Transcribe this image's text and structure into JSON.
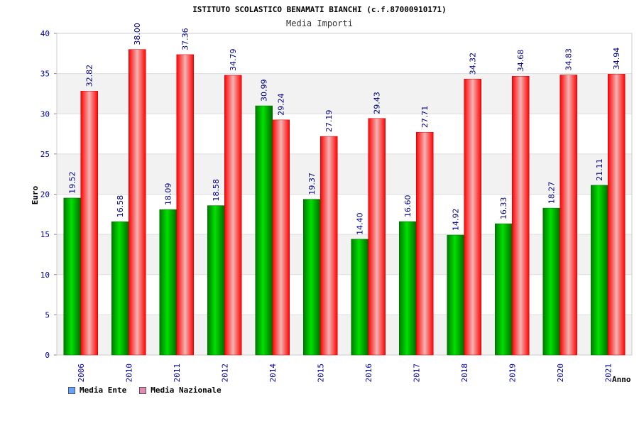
{
  "chart_data": {
    "type": "bar",
    "title": "ISTITUTO SCOLASTICO BENAMATI BIANCHI (c.f.87000910171)",
    "subtitle": "Media Importi",
    "xlabel": "Anno",
    "ylabel": "Euro",
    "ylim": [
      0,
      40
    ],
    "yticks": [
      0,
      5,
      10,
      15,
      20,
      25,
      30,
      35,
      40
    ],
    "categories": [
      "2006",
      "2010",
      "2011",
      "2012",
      "2014",
      "2015",
      "2016",
      "2017",
      "2018",
      "2019",
      "2020",
      "2021"
    ],
    "series": [
      {
        "name": "Media Ente",
        "values": [
          19.52,
          16.58,
          18.09,
          18.58,
          30.99,
          19.37,
          14.4,
          16.6,
          14.92,
          16.33,
          18.27,
          21.11
        ],
        "labels": [
          "19.52",
          "16.58",
          "18.09",
          "18.58",
          "30.99",
          "19.37",
          "14.40",
          "16.60",
          "14.92",
          "16.33",
          "18.27",
          "21.11"
        ],
        "color": "#00c000",
        "legend_color": "#66a3ff"
      },
      {
        "name": "Media Nazionale",
        "values": [
          32.82,
          38.0,
          37.36,
          34.79,
          29.24,
          27.19,
          29.43,
          27.71,
          34.32,
          34.68,
          34.83,
          34.94
        ],
        "labels": [
          "32.82",
          "38.00",
          "37.36",
          "34.79",
          "29.24",
          "27.19",
          "29.43",
          "27.71",
          "34.32",
          "34.68",
          "34.83",
          "34.94"
        ],
        "color": "#ff2020",
        "legend_color": "#e38ab3"
      }
    ],
    "grid": true,
    "legend": "bottom-left"
  }
}
